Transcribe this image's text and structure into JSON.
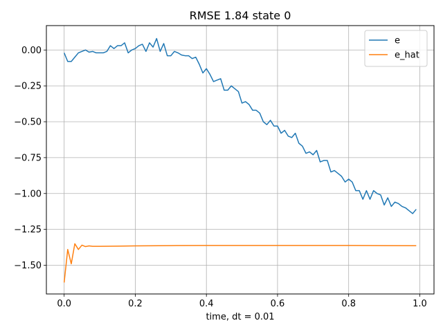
{
  "chart_data": {
    "type": "line",
    "title": "RMSE 1.84 state 0",
    "xlabel": "time, dt = 0.01",
    "ylabel": "",
    "xlim": [
      -0.05,
      1.04
    ],
    "ylim": [
      -1.7,
      0.17
    ],
    "xticks": [
      0.0,
      0.2,
      0.4,
      0.6,
      0.8,
      1.0
    ],
    "xtick_labels": [
      "0.0",
      "0.2",
      "0.4",
      "0.6",
      "0.8",
      "1.0"
    ],
    "yticks": [
      0.0,
      -0.25,
      -0.5,
      -0.75,
      -1.0,
      -1.25,
      -1.5
    ],
    "ytick_labels": [
      "0.00",
      "−0.25",
      "−0.50",
      "−0.75",
      "−1.00",
      "−1.25",
      "−1.50"
    ],
    "grid": true,
    "legend_position": "top-right",
    "series": [
      {
        "name": "e",
        "color": "#1f77b4",
        "x": [
          0.0,
          0.01,
          0.02,
          0.03,
          0.04,
          0.05,
          0.06,
          0.07,
          0.08,
          0.09,
          0.1,
          0.11,
          0.12,
          0.13,
          0.14,
          0.15,
          0.16,
          0.17,
          0.18,
          0.19,
          0.2,
          0.21,
          0.22,
          0.23,
          0.24,
          0.25,
          0.26,
          0.27,
          0.28,
          0.29,
          0.3,
          0.31,
          0.32,
          0.33,
          0.34,
          0.35,
          0.36,
          0.37,
          0.38,
          0.39,
          0.4,
          0.41,
          0.42,
          0.43,
          0.44,
          0.45,
          0.46,
          0.47,
          0.48,
          0.49,
          0.5,
          0.51,
          0.52,
          0.53,
          0.54,
          0.55,
          0.56,
          0.57,
          0.58,
          0.59,
          0.6,
          0.61,
          0.62,
          0.63,
          0.64,
          0.65,
          0.66,
          0.67,
          0.68,
          0.69,
          0.7,
          0.71,
          0.72,
          0.73,
          0.74,
          0.75,
          0.76,
          0.77,
          0.78,
          0.79,
          0.8,
          0.81,
          0.82,
          0.83,
          0.84,
          0.85,
          0.86,
          0.87,
          0.88,
          0.89,
          0.9,
          0.91,
          0.92,
          0.93,
          0.94,
          0.95,
          0.96,
          0.97,
          0.98,
          0.99
        ],
        "y": [
          -0.02,
          -0.08,
          -0.08,
          -0.05,
          -0.02,
          -0.01,
          0.0,
          -0.015,
          -0.01,
          -0.02,
          -0.02,
          -0.02,
          -0.01,
          0.03,
          0.01,
          0.03,
          0.03,
          0.05,
          -0.02,
          0.0,
          0.01,
          0.03,
          0.04,
          -0.01,
          0.05,
          0.02,
          0.08,
          -0.01,
          0.045,
          -0.04,
          -0.04,
          -0.01,
          -0.02,
          -0.035,
          -0.04,
          -0.04,
          -0.06,
          -0.05,
          -0.1,
          -0.16,
          -0.13,
          -0.17,
          -0.22,
          -0.21,
          -0.2,
          -0.28,
          -0.28,
          -0.25,
          -0.27,
          -0.29,
          -0.37,
          -0.36,
          -0.38,
          -0.42,
          -0.42,
          -0.44,
          -0.5,
          -0.52,
          -0.49,
          -0.53,
          -0.53,
          -0.58,
          -0.56,
          -0.6,
          -0.61,
          -0.58,
          -0.65,
          -0.67,
          -0.72,
          -0.71,
          -0.73,
          -0.7,
          -0.78,
          -0.77,
          -0.77,
          -0.85,
          -0.84,
          -0.86,
          -0.88,
          -0.92,
          -0.9,
          -0.92,
          -0.98,
          -0.98,
          -1.04,
          -0.98,
          -1.04,
          -0.98,
          -1.0,
          -1.01,
          -1.08,
          -1.03,
          -1.09,
          -1.06,
          -1.07,
          -1.09,
          -1.1,
          -1.12,
          -1.14,
          -1.11
        ]
      },
      {
        "name": "e_hat",
        "color": "#ff7f0e",
        "x": [
          0.0,
          0.01,
          0.02,
          0.03,
          0.04,
          0.05,
          0.06,
          0.07,
          0.08,
          0.1,
          0.15,
          0.2,
          0.3,
          0.4,
          0.5,
          0.6,
          0.7,
          0.8,
          0.9,
          0.99
        ],
        "y": [
          -1.62,
          -1.39,
          -1.49,
          -1.35,
          -1.39,
          -1.36,
          -1.37,
          -1.365,
          -1.368,
          -1.368,
          -1.367,
          -1.365,
          -1.363,
          -1.362,
          -1.362,
          -1.362,
          -1.362,
          -1.362,
          -1.363,
          -1.364
        ]
      }
    ]
  }
}
